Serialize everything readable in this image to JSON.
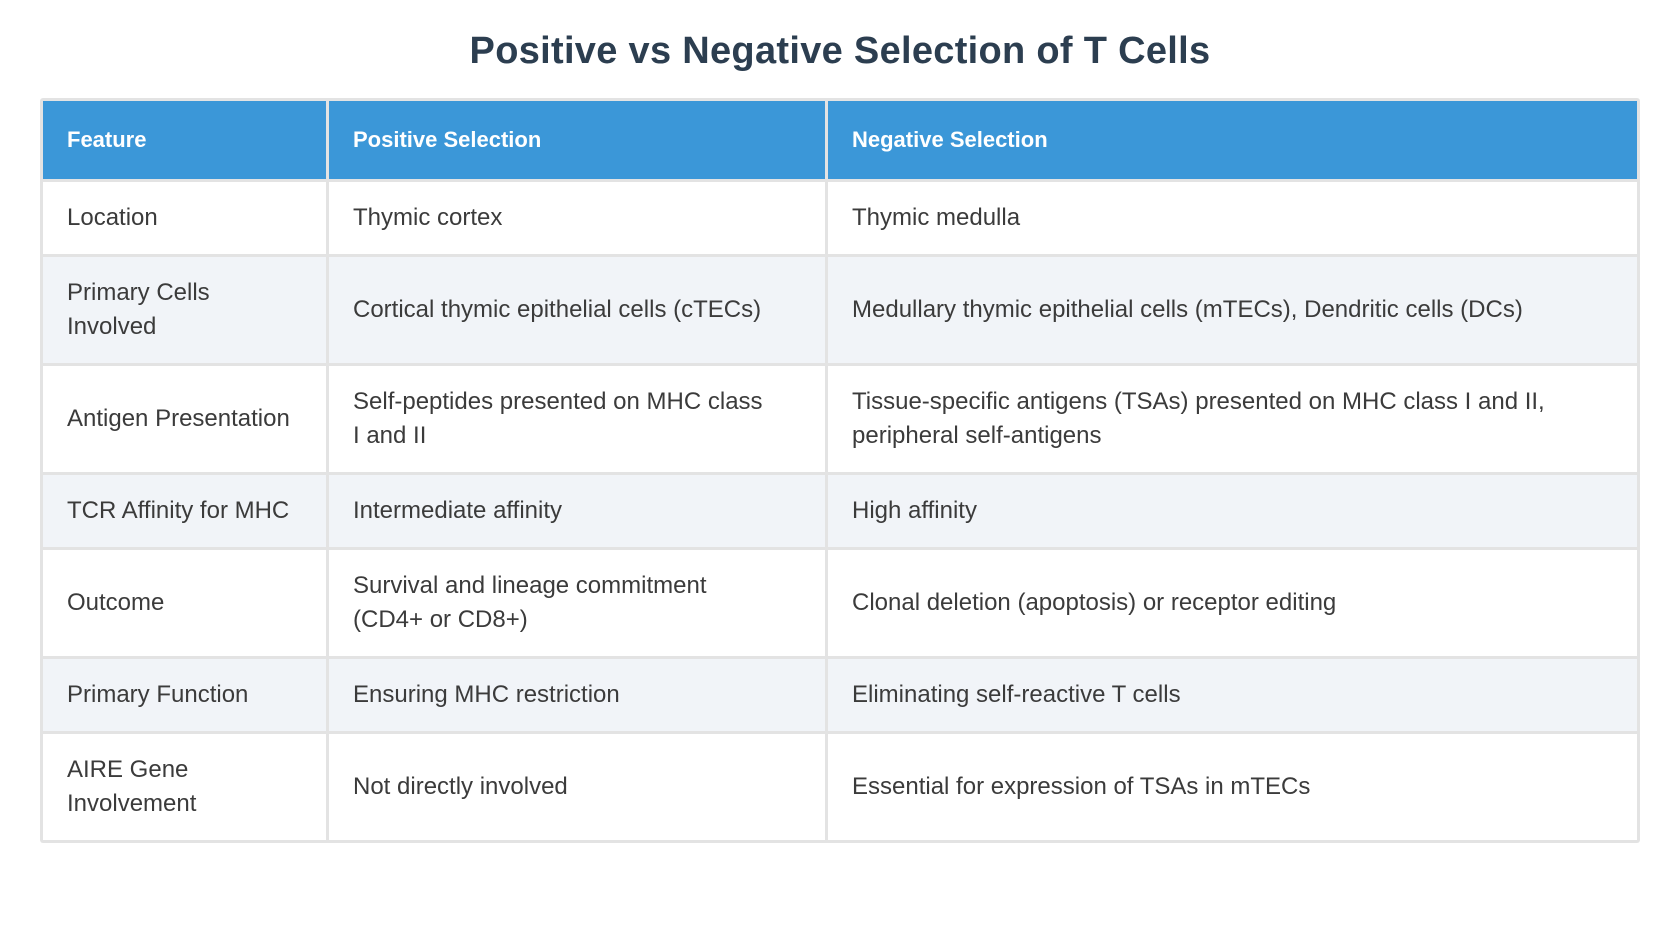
{
  "chart_data": {
    "type": "table",
    "title": "Positive vs Negative Selection of T Cells",
    "columns": [
      "Feature",
      "Positive Selection",
      "Negative Selection"
    ],
    "rows": [
      [
        "Location",
        "Thymic cortex",
        "Thymic medulla"
      ],
      [
        "Primary Cells Involved",
        "Cortical thymic epithelial cells (cTECs)",
        "Medullary thymic epithelial cells (mTECs), Dendritic cells (DCs)"
      ],
      [
        "Antigen Presentation",
        "Self-peptides presented on MHC class I and II",
        "Tissue-specific antigens (TSAs) presented on MHC class I and II, peripheral self-antigens"
      ],
      [
        "TCR Affinity for MHC",
        "Intermediate affinity",
        "High affinity"
      ],
      [
        "Outcome",
        "Survival and lineage commitment (CD4+ or CD8+)",
        "Clonal deletion (apoptosis) or receptor editing"
      ],
      [
        "Primary Function",
        "Ensuring MHC restriction",
        "Eliminating self-reactive T cells"
      ],
      [
        "AIRE Gene Involvement",
        "Not directly involved",
        "Essential for expression of TSAs in mTECs"
      ]
    ],
    "layout": {
      "header_position": "top",
      "striped": true,
      "stripe_pattern": "even rows light, odd rows white",
      "legend": "none",
      "grid": "on"
    }
  },
  "colors": {
    "header_bg": "#3b97d8",
    "header_text": "#ffffff",
    "title_text": "#2c3e50",
    "body_text": "#3b3b3b",
    "row_bg": "#ffffff",
    "row_alt_bg": "#f1f4f8",
    "grid": "#e3e3e3",
    "page_bg": "#ffffff"
  }
}
